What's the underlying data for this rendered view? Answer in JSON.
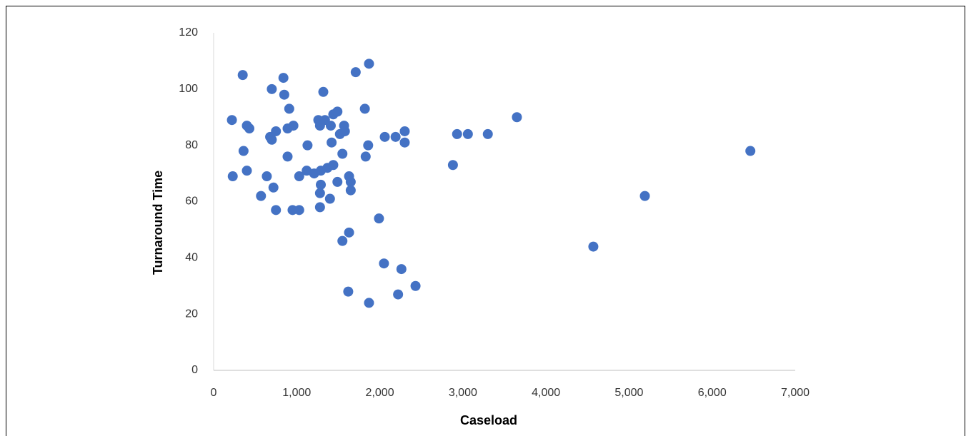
{
  "chart_data": {
    "type": "scatter",
    "x_label": "Caseload",
    "y_label": "Turnaround Time",
    "color": "#4472c4",
    "grid": false,
    "x": [
      350,
      220,
      360,
      230,
      400,
      430,
      400,
      570,
      640,
      700,
      840,
      850,
      910,
      680,
      700,
      750,
      890,
      960,
      890,
      720,
      750,
      950,
      1030,
      1030,
      1120,
      1130,
      1210,
      1260,
      1280,
      1320,
      1340,
      1290,
      1290,
      1280,
      1280,
      1370,
      1410,
      1440,
      1490,
      1420,
      1440,
      1400,
      1490,
      1520,
      1570,
      1580,
      1550,
      1550,
      1630,
      1650,
      1650,
      1630,
      1620,
      1710,
      1870,
      1820,
      1830,
      1860,
      1870,
      1990,
      2060,
      2050,
      2190,
      2300,
      2300,
      2260,
      2220,
      2430,
      2880,
      2930,
      3060,
      3300,
      3650,
      4570,
      5190,
      6460
    ],
    "y": [
      105,
      89,
      78,
      69,
      87,
      86,
      71,
      62,
      69,
      100,
      104,
      98,
      93,
      83,
      82,
      85,
      86,
      87,
      76,
      65,
      57,
      57,
      57,
      69,
      71,
      80,
      70,
      89,
      87,
      99,
      89,
      71,
      66,
      63,
      58,
      72,
      87,
      91,
      92,
      81,
      73,
      61,
      67,
      84,
      87,
      85,
      77,
      46,
      69,
      67,
      64,
      49,
      28,
      106,
      109,
      93,
      76,
      80,
      24,
      54,
      83,
      38,
      83,
      85,
      81,
      36,
      27,
      30,
      73,
      84,
      84,
      84,
      90,
      44,
      62,
      78
    ],
    "xlim": [
      0,
      7000
    ],
    "ylim": [
      0,
      120
    ],
    "xticks": [
      0,
      {
        "value": 1000,
        "label": "1,000"
      },
      {
        "value": 2000,
        "label": "2,000"
      },
      {
        "value": 3000,
        "label": "3,000"
      },
      {
        "value": 4000,
        "label": "4,000"
      },
      {
        "value": 5000,
        "label": "5,000"
      },
      {
        "value": 6000,
        "label": "6,000"
      },
      {
        "value": 7000,
        "label": "7,000"
      }
    ],
    "yticks": [
      0,
      20,
      40,
      60,
      80,
      100,
      120
    ]
  }
}
